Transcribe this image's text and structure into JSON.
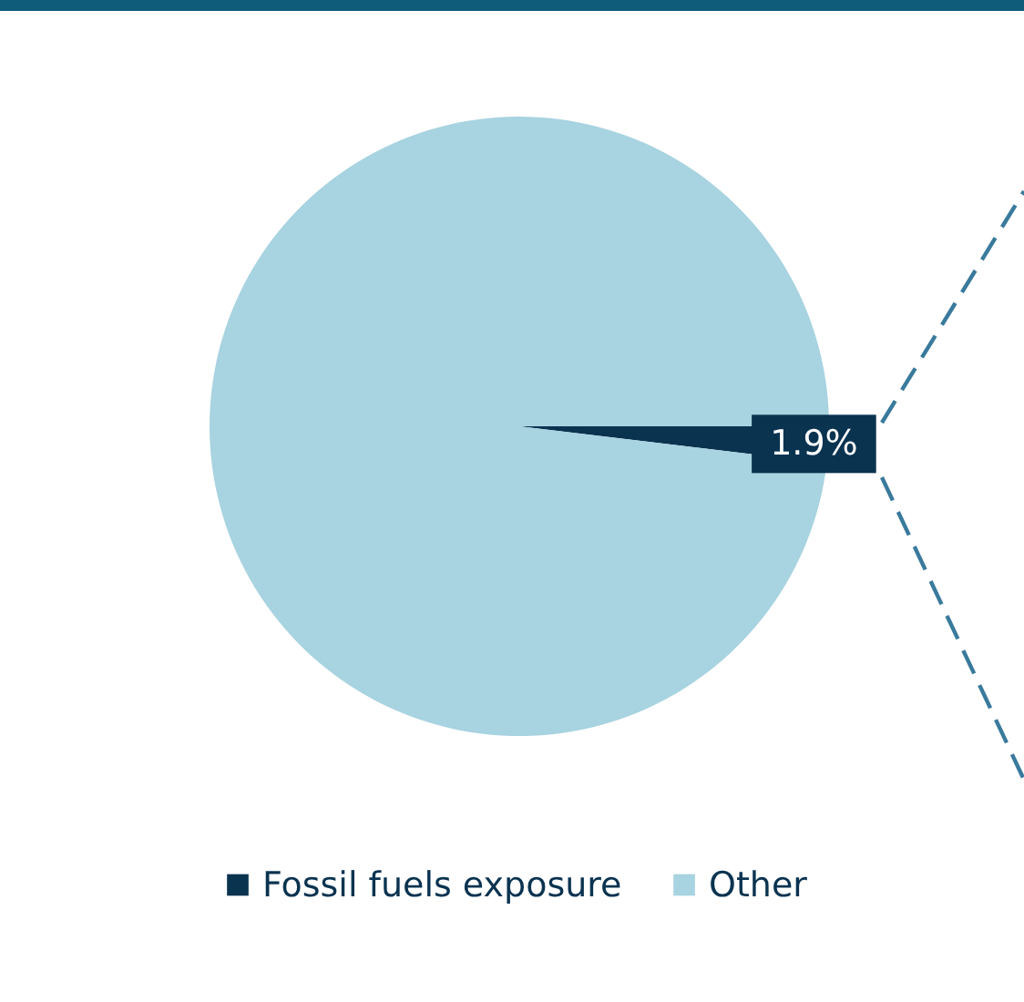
{
  "chart_data": {
    "type": "pie",
    "categories": [
      "Fossil fuels exposure",
      "Other"
    ],
    "values": [
      1.9,
      98.1
    ],
    "colors": [
      "#0a3350",
      "#a8d3e0"
    ],
    "value_labels": [
      "1.9%",
      null
    ],
    "legend": "bottom"
  }
}
